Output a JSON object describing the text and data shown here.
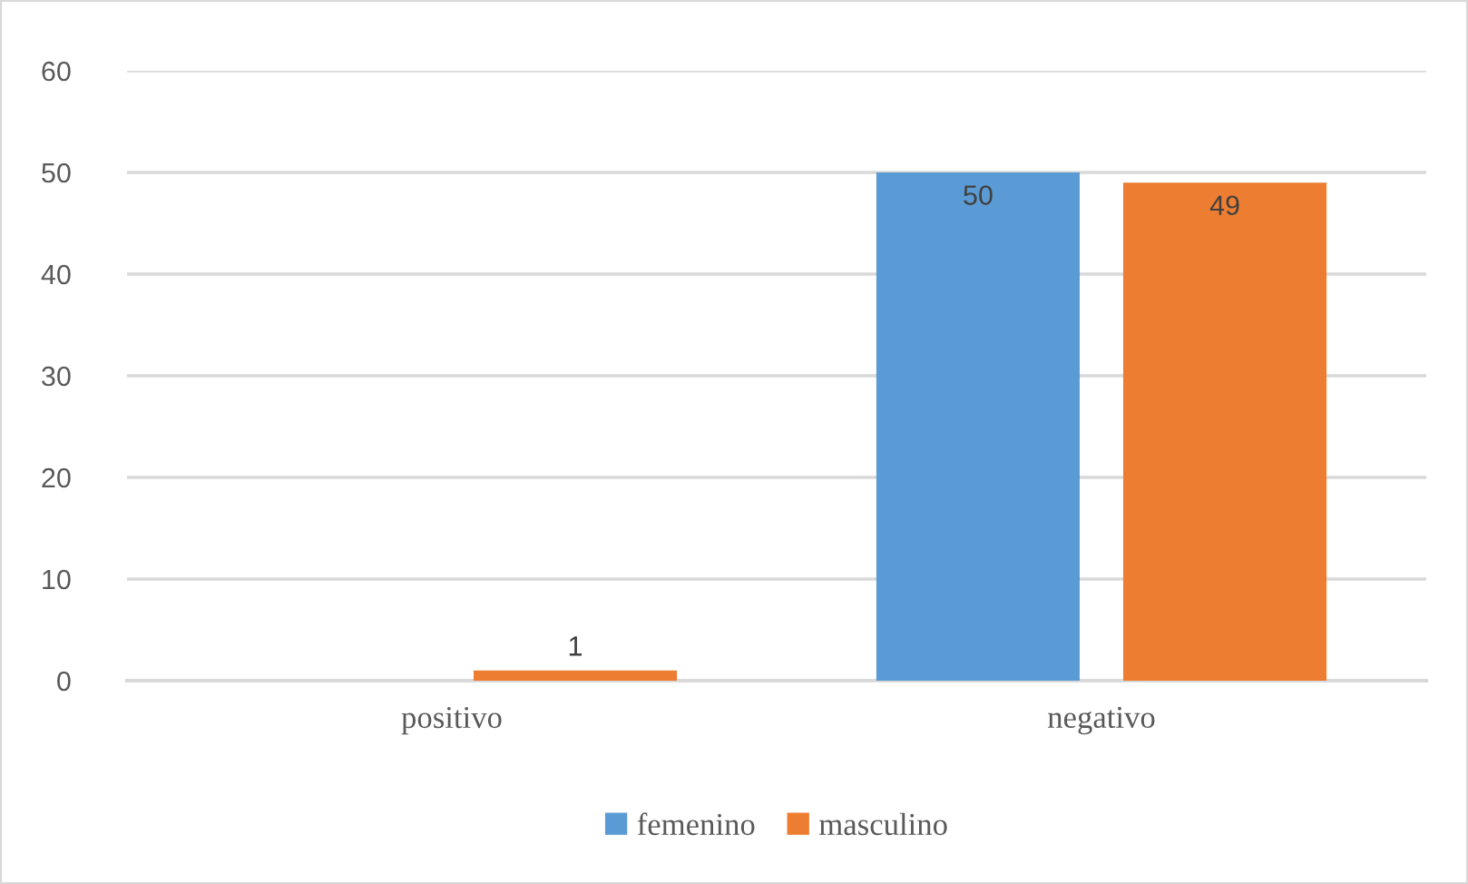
{
  "chart_data": {
    "type": "bar",
    "categories": [
      "positivo",
      "negativo"
    ],
    "series": [
      {
        "name": "femenino",
        "color": "#5b9bd5",
        "values": [
          null,
          50
        ]
      },
      {
        "name": "masculino",
        "color": "#ed7d31",
        "values": [
          1,
          49
        ]
      }
    ],
    "ylim": [
      0,
      60
    ],
    "yticks": [
      0,
      10,
      20,
      30,
      40,
      50,
      60
    ],
    "grid": "y",
    "legend": "bottom",
    "data_labels": true
  }
}
